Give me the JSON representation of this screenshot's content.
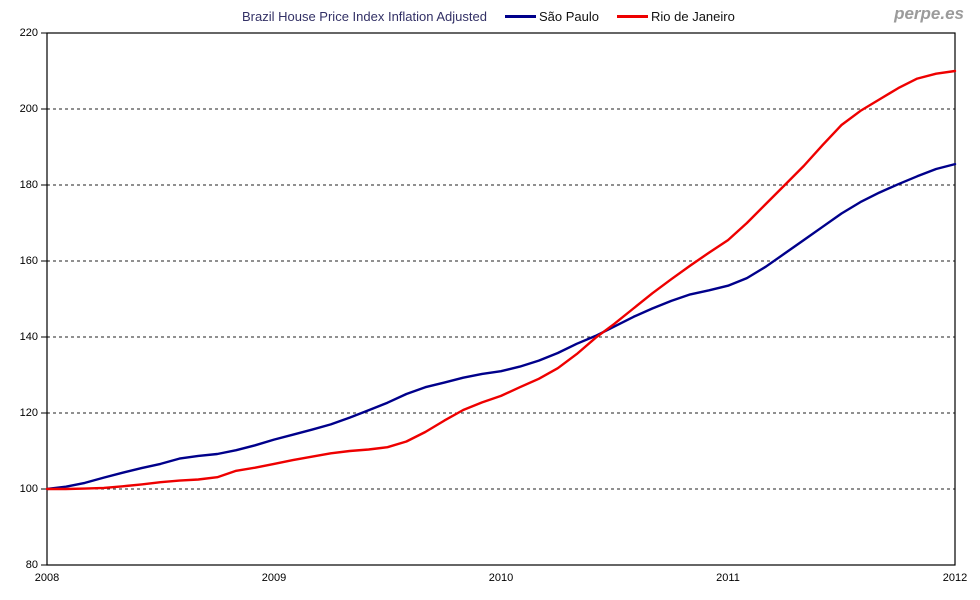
{
  "header": {
    "title": "Brazil House Price Index Inflation Adjusted",
    "watermark": "perpe.es"
  },
  "chart_data": {
    "type": "line",
    "title": "Brazil House Price Index Inflation Adjusted",
    "x_unit": "month",
    "x_start": "2008-01",
    "x_end": "2012-01",
    "xticks": [
      "2008",
      "2009",
      "2010",
      "2011",
      "2012"
    ],
    "yticks": [
      220,
      200,
      180,
      160,
      140,
      120,
      100,
      80
    ],
    "ylim": [
      80,
      220
    ],
    "xlim_months": [
      0,
      48
    ],
    "grid": "horizontal-dashed",
    "legend_position": "top",
    "frame_color": "#000000",
    "grid_color": "#222222",
    "series": [
      {
        "name": "São Paulo",
        "color": "#00008B",
        "values": [
          100,
          100.6,
          101.6,
          103.0,
          104.3,
          105.5,
          106.6,
          108.0,
          108.7,
          109.2,
          110.2,
          111.5,
          113.0,
          114.3,
          115.6,
          117.0,
          118.8,
          120.7,
          122.7,
          125.0,
          126.8,
          128.0,
          129.3,
          130.3,
          131.0,
          132.2,
          133.8,
          135.8,
          138.2,
          140.3,
          142.8,
          145.3,
          147.5,
          149.5,
          151.2,
          152.3,
          153.5,
          155.5,
          158.5,
          162.0,
          165.5,
          169.0,
          172.5,
          175.5,
          178.0,
          180.2,
          182.3,
          184.2,
          185.5
        ]
      },
      {
        "name": "Rio de Janeiro",
        "color": "#EE0000",
        "values": [
          100,
          100.0,
          100.1,
          100.3,
          100.7,
          101.2,
          101.8,
          102.2,
          102.5,
          103.1,
          104.8,
          105.6,
          106.6,
          107.6,
          108.5,
          109.4,
          110.0,
          110.4,
          111.0,
          112.5,
          115.0,
          118.0,
          120.8,
          122.8,
          124.5,
          126.8,
          129.0,
          131.8,
          135.5,
          139.8,
          143.5,
          147.5,
          151.5,
          155.2,
          158.8,
          162.2,
          165.5,
          170.0,
          175.0,
          180.0,
          185.0,
          190.5,
          195.8,
          199.5,
          202.5,
          205.5,
          208.0,
          209.3,
          210.0
        ]
      }
    ]
  }
}
